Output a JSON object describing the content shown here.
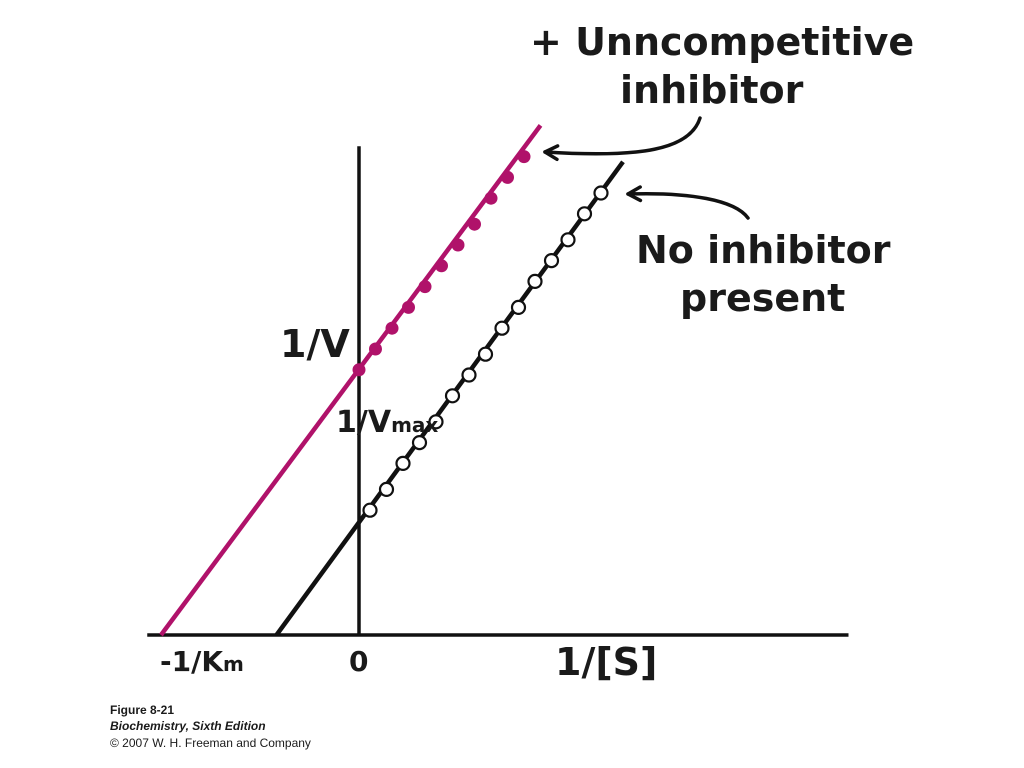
{
  "colors": {
    "inhibitor": "#b0126a",
    "control": "#111111",
    "axis": "#111111"
  },
  "labels": {
    "inhibitor_line1": "+ Unncompetitive",
    "inhibitor_line2": "inhibitor",
    "no_inhibitor_line1": "No inhibitor",
    "no_inhibitor_line2": "present",
    "y_axis": "1/V",
    "vmax_main": "1/V",
    "vmax_sub": "max",
    "km_main": "-1/K",
    "km_sub": "m",
    "origin": "0",
    "x_axis": "1/[S]"
  },
  "caption": {
    "figure": "Figure 8-21",
    "book": "Biochemistry, Sixth Edition",
    "copyright": "© 2007 W. H. Freeman and Company"
  },
  "chart_data": {
    "type": "line",
    "xlabel": "1/[S]",
    "ylabel": "1/V",
    "grid": false,
    "series": [
      {
        "name": "+ Unncompetitive inhibitor",
        "color": "#b0126a",
        "marker": "filled",
        "line_x": [
          -3.6,
          3.3
        ],
        "line_y": [
          0,
          9.8
        ],
        "points": [
          [
            0.0,
            5.1
          ],
          [
            0.3,
            5.5
          ],
          [
            0.6,
            5.9
          ],
          [
            0.9,
            6.3
          ],
          [
            1.2,
            6.7
          ],
          [
            1.5,
            7.1
          ],
          [
            1.8,
            7.5
          ],
          [
            2.1,
            7.9
          ],
          [
            2.4,
            8.4
          ],
          [
            2.7,
            8.8
          ],
          [
            3.0,
            9.2
          ]
        ]
      },
      {
        "name": "No inhibitor present",
        "color": "#111111",
        "marker": "open",
        "line_x": [
          -1.5,
          4.8
        ],
        "line_y": [
          0,
          9.1
        ],
        "points": [
          [
            0.2,
            2.4
          ],
          [
            0.5,
            2.8
          ],
          [
            0.8,
            3.3
          ],
          [
            1.1,
            3.7
          ],
          [
            1.4,
            4.1
          ],
          [
            1.7,
            4.6
          ],
          [
            2.0,
            5.0
          ],
          [
            2.3,
            5.4
          ],
          [
            2.6,
            5.9
          ],
          [
            2.9,
            6.3
          ],
          [
            3.2,
            6.8
          ],
          [
            3.5,
            7.2
          ],
          [
            3.8,
            7.6
          ],
          [
            4.1,
            8.1
          ],
          [
            4.4,
            8.5
          ]
        ]
      }
    ]
  }
}
